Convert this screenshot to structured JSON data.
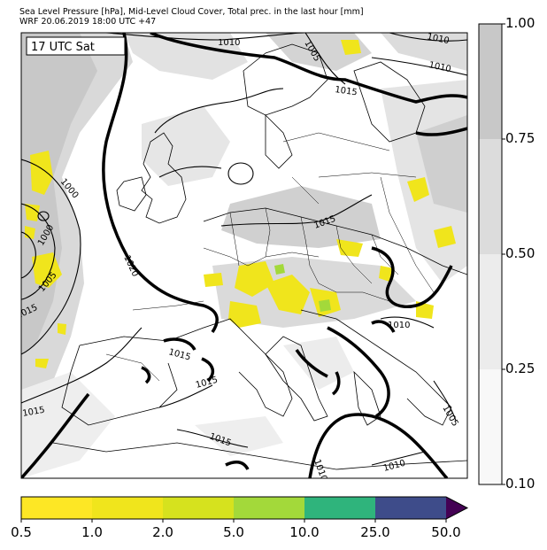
{
  "header": {
    "line1": "Sea Level Pressure [hPa], Mid-Level Cloud Cover, Total prec. in the last hour [mm]",
    "line2": "WRF 20.06.2019 18:00 UTC +47"
  },
  "map": {
    "time_label": "17 UTC Sat",
    "isobar_labels": [
      "1010",
      "1005",
      "1010",
      "1015",
      "1010",
      "1000",
      "1000",
      "1005",
      "1015",
      "1020",
      "1015",
      "1015",
      "1015",
      "1015",
      "1010",
      "1015",
      "1010",
      "1005",
      "1010"
    ]
  },
  "cloud_colorbar": {
    "ticks": [
      "1.00",
      "0.75",
      "0.50",
      "0.25",
      "0.10"
    ],
    "colors": [
      "#c8c8c8",
      "#dcdcdc",
      "#ececec",
      "#f8f8f8"
    ]
  },
  "precip_colorbar": {
    "ticks": [
      "0.5",
      "1.0",
      "2.0",
      "5.0",
      "10.0",
      "25.0",
      "50.0"
    ],
    "colors": [
      "#fde725",
      "#f0e51c",
      "#d6e21e",
      "#a3d93a",
      "#2fb47c",
      "#3e4c8a",
      "#440154"
    ]
  }
}
